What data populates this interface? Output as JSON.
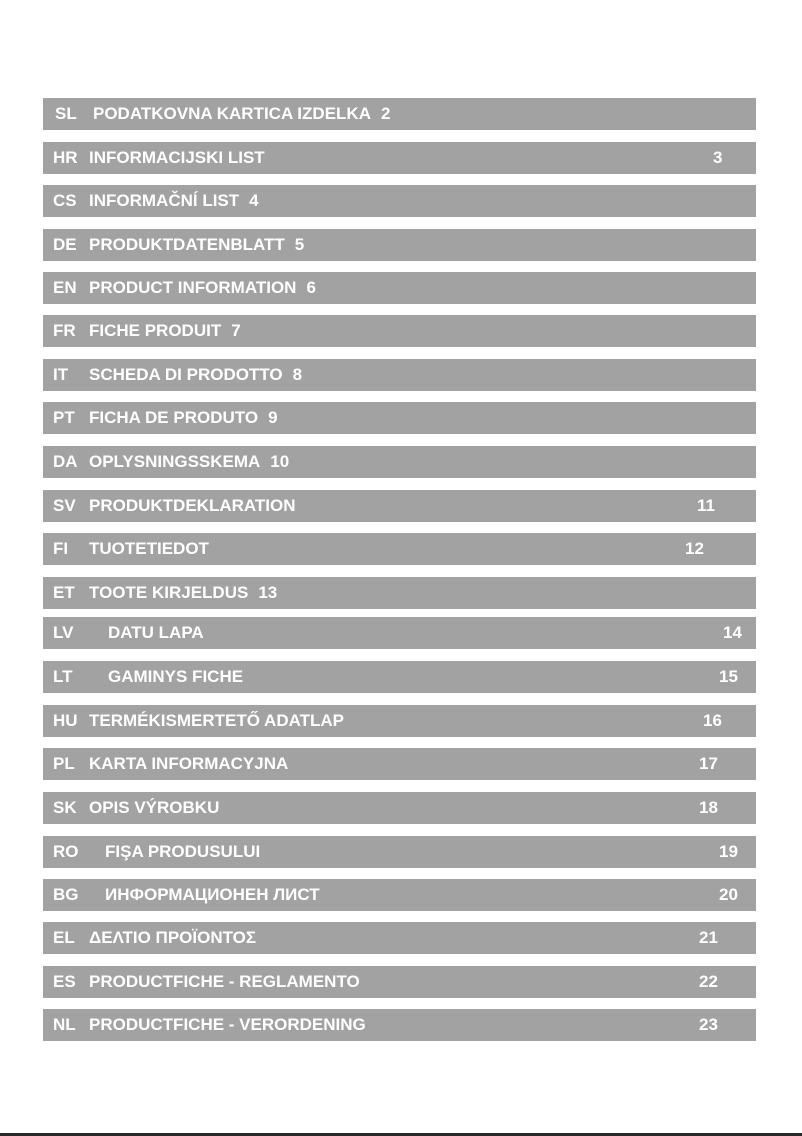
{
  "toc": [
    {
      "code": "SL",
      "title": "PODATKOVNA KARTICA IZDELKA",
      "page": "2",
      "inline": true
    },
    {
      "code": "HR",
      "title": "INFORMACIJSKI LIST",
      "page": "3",
      "inline": false
    },
    {
      "code": "CS",
      "title": "INFORMAČNÍ LIST",
      "page": "4",
      "inline": true
    },
    {
      "code": "DE",
      "title": "PRODUKTDATENBLATT",
      "page": "5",
      "inline": true
    },
    {
      "code": "EN",
      "title": "PRODUCT INFORMATION",
      "page": "6",
      "inline": true
    },
    {
      "code": "FR",
      "title": "FICHE PRODUIT",
      "page": "7",
      "inline": true
    },
    {
      "code": "IT",
      "title": "SCHEDA DI PRODOTTO",
      "page": "8",
      "inline": true
    },
    {
      "code": "PT",
      "title": "FICHA DE PRODUTO",
      "page": "9",
      "inline": true
    },
    {
      "code": "DA",
      "title": "OPLYSNINGSSKEMA",
      "page": "10",
      "inline": true
    },
    {
      "code": "SV",
      "title": "PRODUKTDEKLARATION",
      "page": "11",
      "inline": false
    },
    {
      "code": "FI",
      "title": "TUOTETIEDOT",
      "page": "12",
      "inline": false
    },
    {
      "code": "ET",
      "title": "TOOTE KIRJELDUS",
      "page": "13",
      "inline": true
    },
    {
      "code": "LV",
      "title": "DATU LAPA",
      "page": "14",
      "inline": false
    },
    {
      "code": "LT",
      "title": "GAMINYS FICHE",
      "page": "15",
      "inline": false
    },
    {
      "code": "HU",
      "title": "TERMÉKISMERTETŐ ADATLAP",
      "page": "16",
      "inline": false
    },
    {
      "code": "PL",
      "title": "KARTA INFORMACYJNA",
      "page": "17",
      "inline": false
    },
    {
      "code": "SK",
      "title": "OPIS VÝROBKU",
      "page": "18",
      "inline": false
    },
    {
      "code": "RO",
      "title": "FIŞA PRODUSULUI",
      "page": "19",
      "inline": false
    },
    {
      "code": "BG",
      "title": "ИНФОРМАЦИОНЕН ЛИСТ",
      "page": "20",
      "inline": false
    },
    {
      "code": "EL",
      "title": "ΔΕΛΤΙΟ ΠΡΟΪΟΝΤΟΣ",
      "page": "21",
      "inline": false
    },
    {
      "code": "ES",
      "title": "PRODUCTFICHE - REGLAMENTO",
      "page": "22",
      "inline": false
    },
    {
      "code": "NL",
      "title": "PRODUCTFICHE - VERORDENING",
      "page": "23",
      "inline": false
    }
  ],
  "colors": {
    "bar": "#a3a2a2",
    "text": "#ffffff"
  }
}
